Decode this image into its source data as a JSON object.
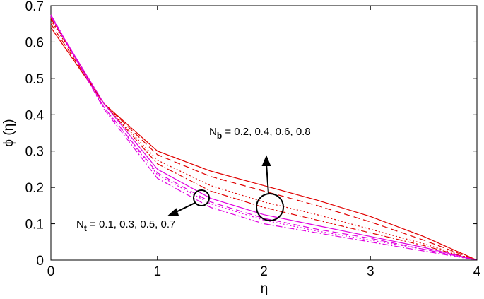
{
  "chart_data": {
    "type": "line",
    "x_label": "η",
    "y_label": "ϕ (η)",
    "x": [
      0,
      0.5,
      1,
      1.5,
      2,
      2.5,
      3,
      3.5,
      4
    ],
    "series": [
      {
        "color": "#e00000",
        "dash": "solid",
        "values": [
          0.64,
          0.43,
          0.3,
          0.245,
          0.205,
          0.165,
          0.12,
          0.065,
          0
        ]
      },
      {
        "color": "#e00000",
        "dash": "dashed",
        "values": [
          0.65,
          0.43,
          0.29,
          0.23,
          0.19,
          0.15,
          0.105,
          0.055,
          0
        ]
      },
      {
        "color": "#e00000",
        "dash": "dotted",
        "values": [
          0.66,
          0.43,
          0.275,
          0.205,
          0.16,
          0.125,
          0.085,
          0.045,
          0
        ]
      },
      {
        "color": "#e00000",
        "dash": "dashdot",
        "values": [
          0.665,
          0.43,
          0.265,
          0.19,
          0.145,
          0.11,
          0.075,
          0.04,
          0
        ]
      },
      {
        "color": "#e000e0",
        "dash": "solid",
        "values": [
          0.67,
          0.43,
          0.25,
          0.17,
          0.125,
          0.095,
          0.065,
          0.035,
          0
        ]
      },
      {
        "color": "#e000e0",
        "dash": "dashed",
        "values": [
          0.67,
          0.42,
          0.24,
          0.16,
          0.115,
          0.085,
          0.06,
          0.03,
          0
        ]
      },
      {
        "color": "#e000e0",
        "dash": "dotted",
        "values": [
          0.675,
          0.42,
          0.235,
          0.155,
          0.11,
          0.08,
          0.055,
          0.03,
          0
        ]
      },
      {
        "color": "#e000e0",
        "dash": "dashdot",
        "values": [
          0.675,
          0.415,
          0.225,
          0.145,
          0.1,
          0.075,
          0.05,
          0.025,
          0
        ]
      }
    ],
    "annotations": [
      {
        "symbol": "N",
        "subscript": "b",
        "text": " = 0.2, 0.4, 0.6, 0.8"
      },
      {
        "symbol": "N",
        "subscript": "t",
        "text": " = 0.1, 0.3, 0.5, 0.7"
      }
    ],
    "xlim": [
      0,
      4
    ],
    "xticks": [
      0,
      1,
      2,
      3,
      4
    ],
    "ylim": [
      0,
      0.7
    ],
    "yticks": [
      0,
      0.1,
      0.2,
      0.3,
      0.4,
      0.5,
      0.6,
      0.7
    ]
  }
}
